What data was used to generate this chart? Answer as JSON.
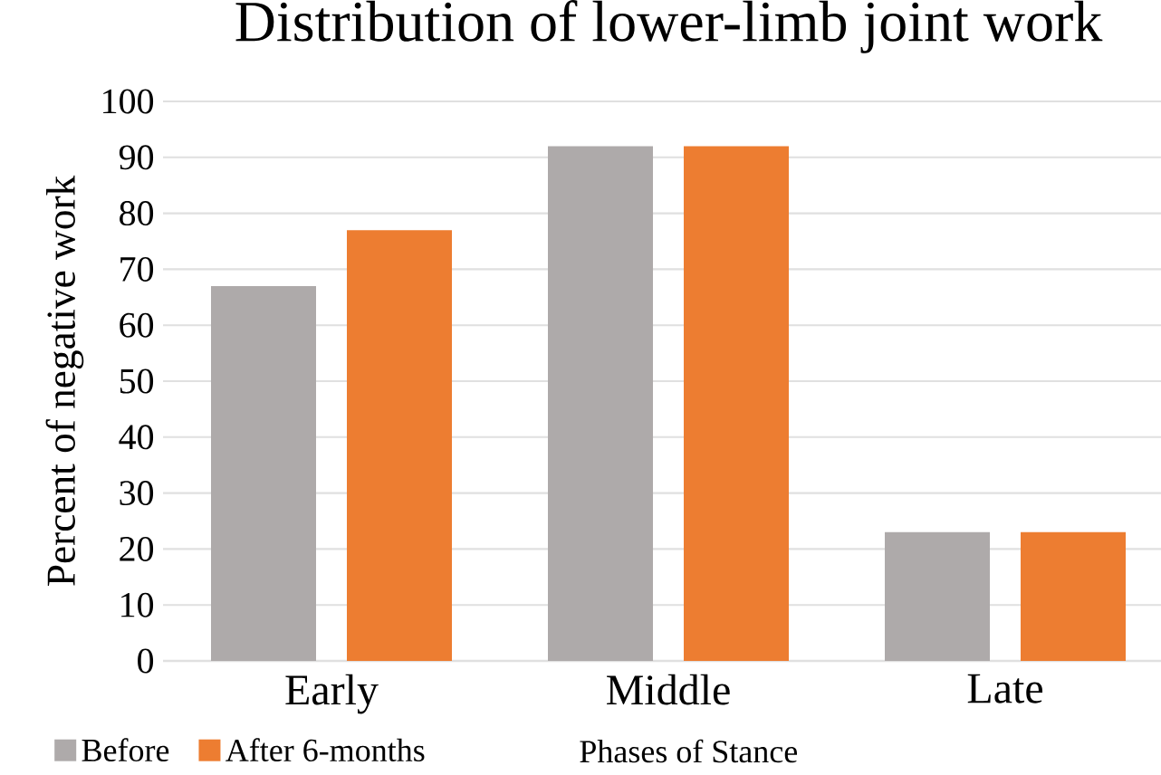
{
  "chart_data": {
    "type": "bar",
    "title": "Distribution of lower-limb joint work",
    "xlabel": "Phases of Stance",
    "ylabel": "Percent of negative work",
    "categories": [
      "Early",
      "Middle",
      "Late"
    ],
    "series": [
      {
        "name": "Before",
        "color": "#aeaaaa",
        "values": [
          67,
          92,
          23
        ]
      },
      {
        "name": "After 6-months",
        "color": "#ed7d31",
        "values": [
          77,
          92,
          23
        ]
      }
    ],
    "ylim": [
      0,
      100
    ],
    "yticks": [
      0,
      10,
      20,
      30,
      40,
      50,
      60,
      70,
      80,
      90,
      100
    ],
    "grid": "y",
    "legend": "bottom"
  }
}
